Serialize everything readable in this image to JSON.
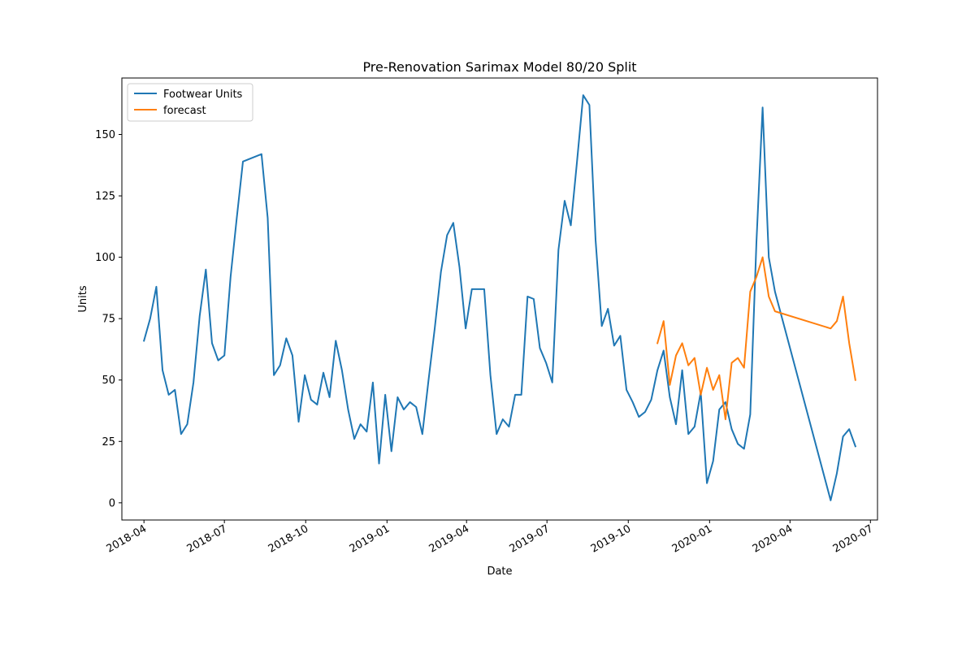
{
  "chart_data": {
    "type": "line",
    "title": "Pre-Renovation Sarimax Model 80/20 Split",
    "xlabel": "Date",
    "ylabel": "Units",
    "x_axis_type": "date",
    "xlim": [
      "2018-03-07",
      "2020-07-09"
    ],
    "ylim": [
      -7,
      173
    ],
    "yticks": [
      0,
      25,
      50,
      75,
      100,
      125,
      150
    ],
    "xticks": [
      {
        "date": "2018-04-01",
        "label": "2018-04"
      },
      {
        "date": "2018-07-01",
        "label": "2018-07"
      },
      {
        "date": "2018-10-01",
        "label": "2018-10"
      },
      {
        "date": "2019-01-01",
        "label": "2019-01"
      },
      {
        "date": "2019-04-01",
        "label": "2019-04"
      },
      {
        "date": "2019-07-01",
        "label": "2019-07"
      },
      {
        "date": "2019-10-01",
        "label": "2019-10"
      },
      {
        "date": "2020-01-01",
        "label": "2020-01"
      },
      {
        "date": "2020-04-01",
        "label": "2020-04"
      },
      {
        "date": "2020-07-01",
        "label": "2020-07"
      }
    ],
    "grid": false,
    "legend_position": "top-left",
    "series": [
      {
        "name": "Footwear Units",
        "color": "#1f77b4",
        "points": [
          [
            "2018-04-01",
            66
          ],
          [
            "2018-04-08",
            75
          ],
          [
            "2018-04-15",
            88
          ],
          [
            "2018-04-22",
            54
          ],
          [
            "2018-04-29",
            44
          ],
          [
            "2018-05-06",
            46
          ],
          [
            "2018-05-13",
            28
          ],
          [
            "2018-05-20",
            32
          ],
          [
            "2018-05-27",
            49
          ],
          [
            "2018-06-03",
            76
          ],
          [
            "2018-06-10",
            95
          ],
          [
            "2018-06-17",
            65
          ],
          [
            "2018-06-24",
            58
          ],
          [
            "2018-07-01",
            60
          ],
          [
            "2018-07-08",
            92
          ],
          [
            "2018-07-15",
            116
          ],
          [
            "2018-07-22",
            139
          ],
          [
            "2018-08-12",
            142
          ],
          [
            "2018-08-19",
            116
          ],
          [
            "2018-08-26",
            52
          ],
          [
            "2018-09-02",
            56
          ],
          [
            "2018-09-09",
            67
          ],
          [
            "2018-09-16",
            60
          ],
          [
            "2018-09-23",
            33
          ],
          [
            "2018-09-30",
            52
          ],
          [
            "2018-10-07",
            42
          ],
          [
            "2018-10-14",
            40
          ],
          [
            "2018-10-21",
            53
          ],
          [
            "2018-10-28",
            43
          ],
          [
            "2018-11-04",
            66
          ],
          [
            "2018-11-11",
            54
          ],
          [
            "2018-11-18",
            38
          ],
          [
            "2018-11-25",
            26
          ],
          [
            "2018-12-02",
            32
          ],
          [
            "2018-12-09",
            29
          ],
          [
            "2018-12-16",
            49
          ],
          [
            "2018-12-23",
            16
          ],
          [
            "2018-12-30",
            44
          ],
          [
            "2019-01-06",
            21
          ],
          [
            "2019-01-13",
            43
          ],
          [
            "2019-01-20",
            38
          ],
          [
            "2019-01-27",
            41
          ],
          [
            "2019-02-03",
            39
          ],
          [
            "2019-02-10",
            28
          ],
          [
            "2019-02-17",
            50
          ],
          [
            "2019-02-24",
            71
          ],
          [
            "2019-03-03",
            94
          ],
          [
            "2019-03-10",
            109
          ],
          [
            "2019-03-17",
            114
          ],
          [
            "2019-03-24",
            96
          ],
          [
            "2019-03-31",
            71
          ],
          [
            "2019-04-07",
            87
          ],
          [
            "2019-04-21",
            87
          ],
          [
            "2019-04-28",
            52
          ],
          [
            "2019-05-05",
            28
          ],
          [
            "2019-05-12",
            34
          ],
          [
            "2019-05-19",
            31
          ],
          [
            "2019-05-26",
            44
          ],
          [
            "2019-06-02",
            44
          ],
          [
            "2019-06-09",
            84
          ],
          [
            "2019-06-16",
            83
          ],
          [
            "2019-06-23",
            63
          ],
          [
            "2019-06-30",
            57
          ],
          [
            "2019-07-07",
            49
          ],
          [
            "2019-07-14",
            103
          ],
          [
            "2019-07-21",
            123
          ],
          [
            "2019-07-28",
            113
          ],
          [
            "2019-08-04",
            139
          ],
          [
            "2019-08-11",
            166
          ],
          [
            "2019-08-18",
            162
          ],
          [
            "2019-08-25",
            107
          ],
          [
            "2019-09-01",
            72
          ],
          [
            "2019-09-08",
            79
          ],
          [
            "2019-09-15",
            64
          ],
          [
            "2019-09-22",
            68
          ],
          [
            "2019-09-29",
            46
          ],
          [
            "2019-10-06",
            41
          ],
          [
            "2019-10-13",
            35
          ],
          [
            "2019-10-20",
            37
          ],
          [
            "2019-10-27",
            42
          ],
          [
            "2019-11-03",
            54
          ],
          [
            "2019-11-10",
            62
          ],
          [
            "2019-11-17",
            43
          ],
          [
            "2019-11-24",
            32
          ],
          [
            "2019-12-01",
            54
          ],
          [
            "2019-12-08",
            28
          ],
          [
            "2019-12-15",
            31
          ],
          [
            "2019-12-22",
            45
          ],
          [
            "2019-12-29",
            8
          ],
          [
            "2020-01-05",
            17
          ],
          [
            "2020-01-12",
            38
          ],
          [
            "2020-01-19",
            41
          ],
          [
            "2020-01-26",
            30
          ],
          [
            "2020-02-02",
            24
          ],
          [
            "2020-02-09",
            22
          ],
          [
            "2020-02-16",
            36
          ],
          [
            "2020-02-23",
            106
          ],
          [
            "2020-03-01",
            161
          ],
          [
            "2020-03-08",
            100
          ],
          [
            "2020-03-15",
            86
          ],
          [
            "2020-05-17",
            1
          ],
          [
            "2020-05-24",
            12
          ],
          [
            "2020-05-31",
            27
          ],
          [
            "2020-06-07",
            30
          ],
          [
            "2020-06-14",
            23
          ]
        ]
      },
      {
        "name": "forecast",
        "color": "#ff7f0e",
        "points": [
          [
            "2019-11-03",
            65
          ],
          [
            "2019-11-10",
            74
          ],
          [
            "2019-11-17",
            48
          ],
          [
            "2019-11-24",
            60
          ],
          [
            "2019-12-01",
            65
          ],
          [
            "2019-12-08",
            56
          ],
          [
            "2019-12-15",
            59
          ],
          [
            "2019-12-22",
            44
          ],
          [
            "2019-12-29",
            55
          ],
          [
            "2020-01-05",
            46
          ],
          [
            "2020-01-12",
            52
          ],
          [
            "2020-01-19",
            34
          ],
          [
            "2020-01-26",
            57
          ],
          [
            "2020-02-02",
            59
          ],
          [
            "2020-02-09",
            55
          ],
          [
            "2020-02-16",
            86
          ],
          [
            "2020-02-23",
            92
          ],
          [
            "2020-03-01",
            100
          ],
          [
            "2020-03-08",
            84
          ],
          [
            "2020-03-15",
            78
          ],
          [
            "2020-05-17",
            71
          ],
          [
            "2020-05-24",
            74
          ],
          [
            "2020-05-31",
            84
          ],
          [
            "2020-06-07",
            65
          ],
          [
            "2020-06-14",
            50
          ]
        ]
      }
    ]
  }
}
